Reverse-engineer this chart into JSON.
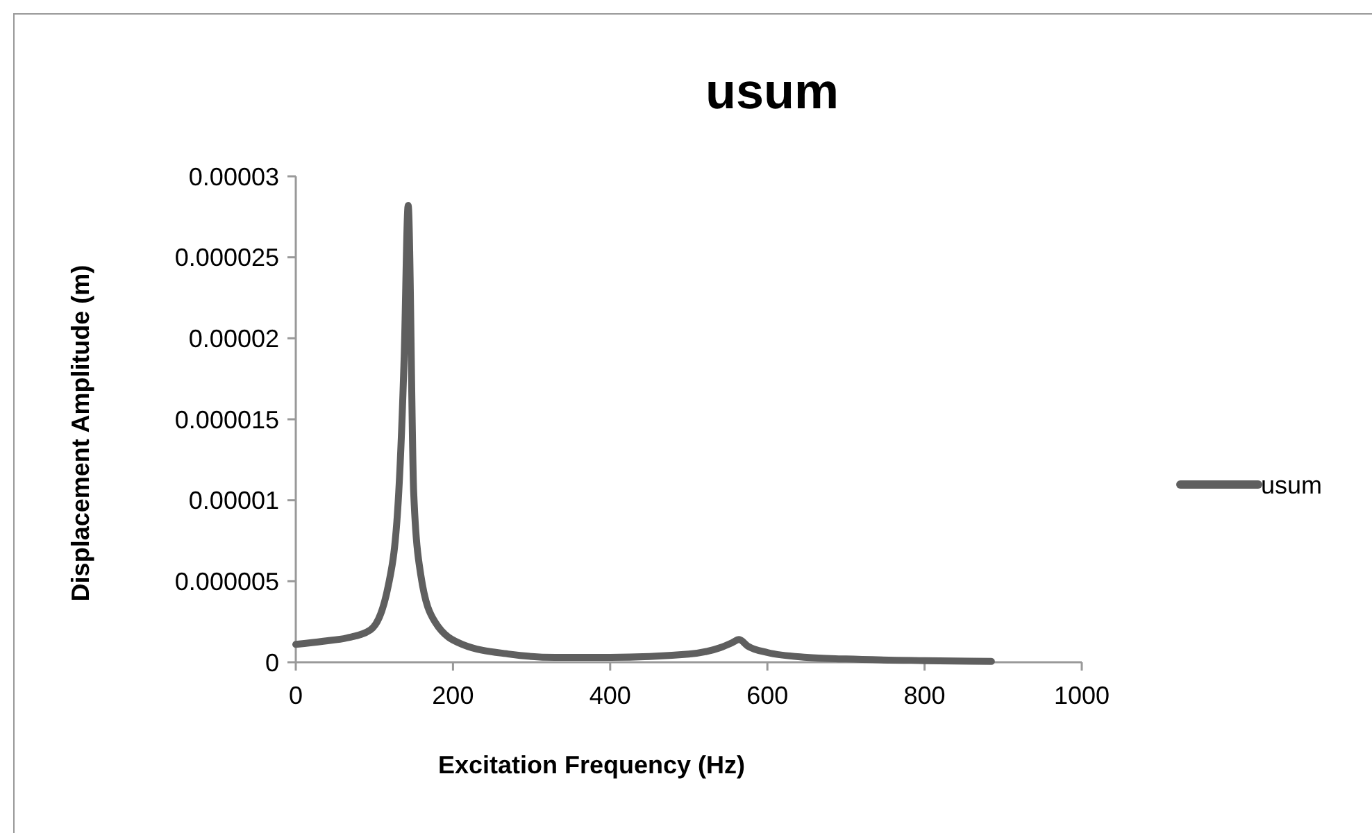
{
  "chart_data": {
    "type": "line",
    "title": "usum",
    "xlabel": "Excitation Frequency (Hz)",
    "ylabel": "Displacement Amplitude (m)",
    "xlim": [
      0,
      1000
    ],
    "xticks": [
      0,
      200,
      400,
      600,
      800,
      1000
    ],
    "ylim": [
      0,
      3e-05
    ],
    "yticks": [
      {
        "value": 0,
        "label": "0"
      },
      {
        "value": 5e-06,
        "label": "0.000005"
      },
      {
        "value": 1e-05,
        "label": "0.00001"
      },
      {
        "value": 1.5e-05,
        "label": "0.000015"
      },
      {
        "value": 2e-05,
        "label": "0.00002"
      },
      {
        "value": 2.5e-05,
        "label": "0.000025"
      },
      {
        "value": 3e-05,
        "label": "0.00003"
      }
    ],
    "grid": false,
    "legend": "right",
    "marker": "none",
    "line_style": "solid",
    "series": [
      {
        "name": "usum",
        "color": "#5f5f5f",
        "x": [
          0,
          35,
          65,
          95,
          118,
          131,
          138,
          143,
          150,
          159,
          177,
          212,
          272,
          330,
          400,
          500,
          540,
          555,
          564,
          575,
          600,
          650,
          700,
          800,
          885
        ],
        "values": [
          1.1e-06,
          1.3e-06,
          1.5e-06,
          2e-06,
          4.8e-06,
          1.05e-05,
          1.9e-05,
          2.82e-05,
          1.05e-05,
          5.4e-06,
          2.5e-06,
          1.1e-06,
          5e-07,
          3e-07,
          3e-07,
          5e-07,
          9e-07,
          1.2e-06,
          1.4e-06,
          1e-06,
          6e-07,
          3e-07,
          2e-07,
          1e-07,
          5e-08
        ]
      }
    ]
  }
}
